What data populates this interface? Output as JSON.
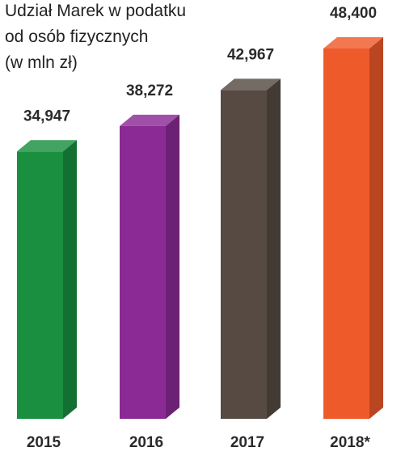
{
  "chart_data": {
    "type": "bar",
    "title_lines": [
      "Udział Marek w podatku",
      "od osób fizycznych",
      "(w mln zł)"
    ],
    "categories": [
      "2015",
      "2016",
      "2017",
      "2018*"
    ],
    "values": [
      34947,
      38272,
      42967,
      48400
    ],
    "value_labels": [
      "34,947",
      "38,272",
      "42,967",
      "48,400"
    ],
    "colors": [
      "#1a8f40",
      "#8b2a95",
      "#574a43",
      "#ee5a2a"
    ],
    "xlabel": "",
    "ylabel": "",
    "grid": false,
    "legend": "none"
  }
}
